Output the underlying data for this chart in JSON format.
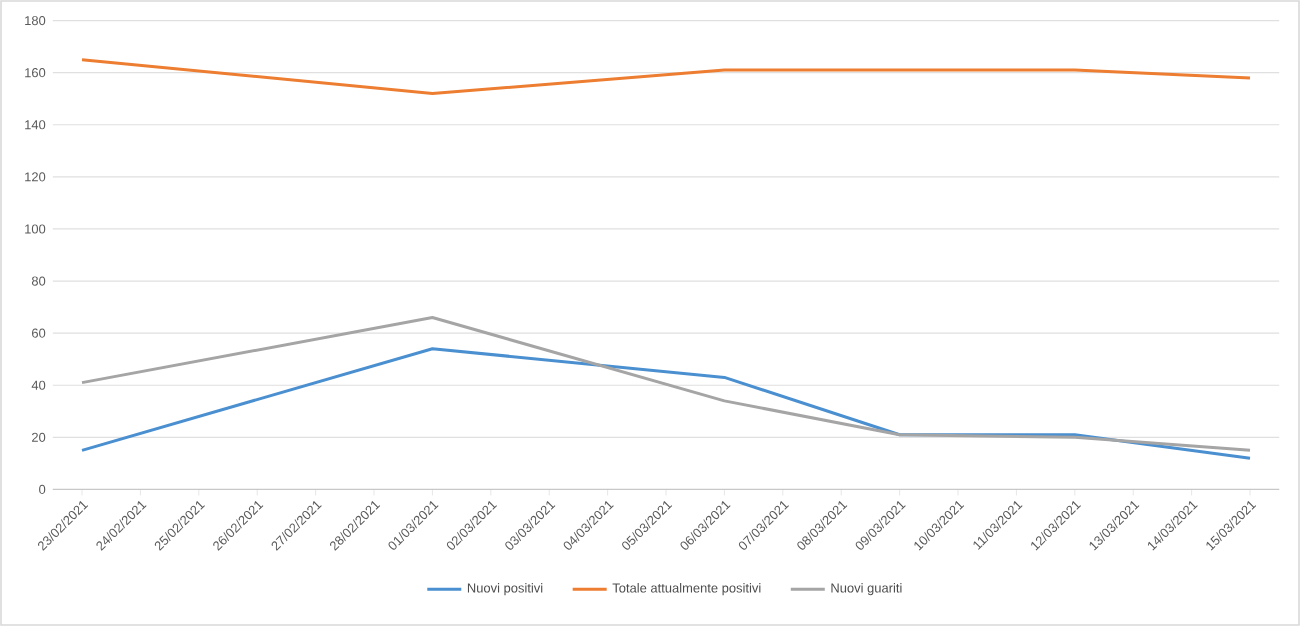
{
  "chart_data": {
    "type": "line",
    "x": [
      "2021-02-23",
      "2021-03-01",
      "2021-03-06",
      "2021-03-09",
      "2021-03-12",
      "2021-03-15"
    ],
    "series": [
      {
        "name": "Nuovi positivi",
        "color": "#4a8fd0",
        "values": [
          15,
          54,
          43,
          21,
          21,
          12
        ]
      },
      {
        "name": "Totale attualmente positivi",
        "color": "#ed7d31",
        "values": [
          165,
          152,
          161,
          161,
          161,
          158
        ]
      },
      {
        "name": "Nuovi guariti",
        "color": "#a5a5a5",
        "values": [
          41,
          66,
          34,
          21,
          20,
          15
        ]
      }
    ],
    "xlim": [
      "2021-02-22T12:00",
      "2021-03-15T12:00"
    ],
    "xticks": [
      {
        "value": "2021-02-23",
        "label": "23/02/2021"
      },
      {
        "value": "2021-02-24",
        "label": "24/02/2021"
      },
      {
        "value": "2021-02-25",
        "label": "25/02/2021"
      },
      {
        "value": "2021-02-26",
        "label": "26/02/2021"
      },
      {
        "value": "2021-02-27",
        "label": "27/02/2021"
      },
      {
        "value": "2021-02-28",
        "label": "28/02/2021"
      },
      {
        "value": "2021-03-01",
        "label": "01/03/2021"
      },
      {
        "value": "2021-03-02",
        "label": "02/03/2021"
      },
      {
        "value": "2021-03-03",
        "label": "03/03/2021"
      },
      {
        "value": "2021-03-04",
        "label": "04/03/2021"
      },
      {
        "value": "2021-03-05",
        "label": "05/03/2021"
      },
      {
        "value": "2021-03-06",
        "label": "06/03/2021"
      },
      {
        "value": "2021-03-07",
        "label": "07/03/2021"
      },
      {
        "value": "2021-03-08",
        "label": "08/03/2021"
      },
      {
        "value": "2021-03-09",
        "label": "09/03/2021"
      },
      {
        "value": "2021-03-10",
        "label": "10/03/2021"
      },
      {
        "value": "2021-03-11",
        "label": "11/03/2021"
      },
      {
        "value": "2021-03-12",
        "label": "12/03/2021"
      },
      {
        "value": "2021-03-13",
        "label": "13/03/2021"
      },
      {
        "value": "2021-03-14",
        "label": "14/03/2021"
      },
      {
        "value": "2021-03-15",
        "label": "15/03/2021"
      }
    ],
    "ylim": [
      0,
      180
    ],
    "yticks": [
      0,
      20,
      40,
      60,
      80,
      100,
      120,
      140,
      160,
      180
    ],
    "grid": "y",
    "legend": "bottom",
    "line_style": "solid"
  }
}
